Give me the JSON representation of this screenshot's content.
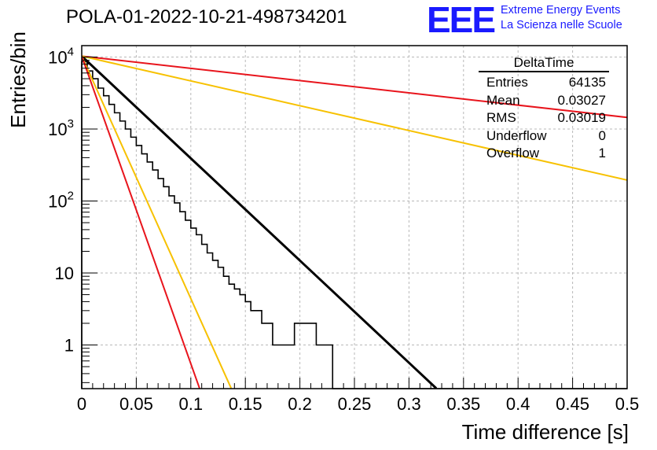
{
  "header": {
    "run_title": "POLA-01-2022-10-21-498734201",
    "logo": "EEE",
    "org_line1": "Extreme Energy Events",
    "org_line2": "La Scienza nelle Scuole"
  },
  "stats_box": {
    "title": "DeltaTime",
    "rows": [
      {
        "label": "Entries",
        "value": "64135"
      },
      {
        "label": "Mean",
        "value": "0.03027"
      },
      {
        "label": "RMS",
        "value": "0.03019"
      },
      {
        "label": "Underflow",
        "value": "0"
      },
      {
        "label": "Overflow",
        "value": "1"
      }
    ]
  },
  "colors": {
    "histogram": "#000000",
    "fit": "#000000",
    "red_lines": "#e8141c",
    "yellow_lines": "#f7c100",
    "grid": "#b8b8b8"
  },
  "chart_data": {
    "type": "line",
    "title": "POLA-01-2022-10-21-498734201",
    "xlabel": "Time difference [s]",
    "ylabel": "Entries/bin",
    "xlim": [
      0,
      0.5
    ],
    "ylim": [
      0.25,
      15000
    ],
    "yscale": "log",
    "grid": true,
    "x_ticks": [
      "0",
      "0.05",
      "0.1",
      "0.15",
      "0.2",
      "0.25",
      "0.3",
      "0.35",
      "0.4",
      "0.45",
      "0.5"
    ],
    "y_ticks": [
      {
        "base": "1",
        "exp": ""
      },
      {
        "base": "10",
        "exp": ""
      },
      {
        "base": "10",
        "exp": "2"
      },
      {
        "base": "10",
        "exp": "3"
      },
      {
        "base": "10",
        "exp": "4"
      }
    ],
    "histogram": {
      "name": "DeltaTime",
      "bin_width": 0.005,
      "counts": [
        8600,
        6400,
        5000,
        3700,
        2900,
        2200,
        1680,
        1290,
        1000,
        770,
        590,
        452,
        348,
        270,
        205,
        158,
        118,
        94,
        71,
        54,
        42,
        34,
        25,
        19,
        15,
        12,
        9,
        7,
        6,
        5,
        4,
        3,
        3,
        2,
        2,
        1,
        1,
        1,
        1,
        2,
        2,
        2,
        2,
        1,
        1,
        1,
        0,
        0,
        0,
        0,
        0,
        0,
        0,
        0,
        0,
        0,
        0,
        0,
        0,
        0,
        0,
        0,
        0,
        0,
        0,
        0,
        0,
        0,
        0,
        0,
        0,
        0,
        0,
        0,
        0,
        0,
        0,
        0,
        0,
        0,
        0,
        0,
        0,
        0,
        0,
        0,
        0,
        0,
        0,
        0,
        0,
        0,
        0,
        0,
        0,
        0,
        0,
        0,
        0,
        0
      ]
    },
    "series": [
      {
        "color": "#000000",
        "x": [
          0,
          0.325
        ],
        "y": [
          10300,
          0.25
        ]
      },
      {
        "color": "#e8141c",
        "x": [
          0,
          0.5
        ],
        "y": [
          10300,
          1450
        ]
      },
      {
        "color": "#f7c100",
        "x": [
          0,
          0.5
        ],
        "y": [
          10300,
          195
        ]
      },
      {
        "color": "#f7c100",
        "x": [
          0,
          0.137
        ],
        "y": [
          10300,
          0.25
        ]
      },
      {
        "color": "#e8141c",
        "x": [
          0,
          0.108
        ],
        "y": [
          10300,
          0.25
        ]
      }
    ]
  }
}
